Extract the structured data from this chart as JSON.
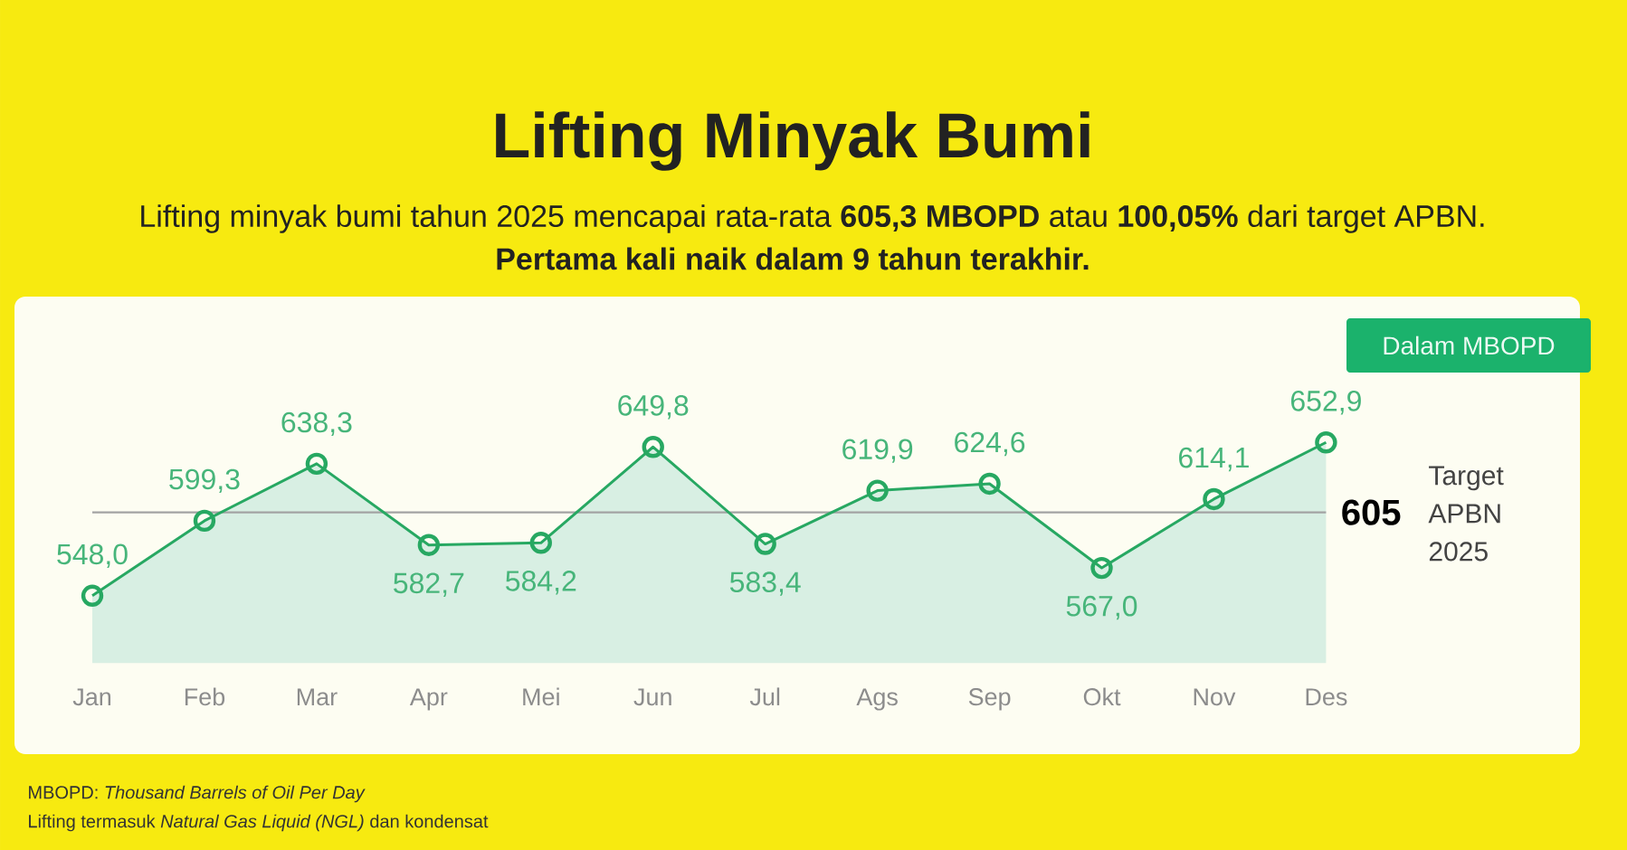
{
  "chart_data": {
    "type": "area",
    "title": "Lifting Minyak Bumi",
    "subtitle": "Lifting minyak bumi tahun 2025 mencapai rata-rata **605,3 MBOPD** atau **100,05%** dari target APBN.",
    "ylabel": "Dalam MBOPD",
    "categories": [
      "Jan",
      "Feb",
      "Mar",
      "Apr",
      "Mei",
      "Jun",
      "Jul",
      "Ags",
      "Sep",
      "Okt",
      "Nov",
      "Des"
    ],
    "values": [
      548.0,
      599.3,
      638.3,
      582.7,
      584.2,
      649.8,
      583.4,
      619.9,
      624.6,
      567.0,
      614.1,
      652.9
    ],
    "value_labels": [
      "548,0",
      "599,3",
      "638,3",
      "582,7",
      "584,2",
      "649,8",
      "583,4",
      "619,9",
      "624,6",
      "567,0",
      "614,1",
      "652,9"
    ],
    "color": "#27a862",
    "marker": "circle",
    "ref_lines": [
      {
        "axis": "y",
        "value": 605,
        "label": "605",
        "color": "#a3a3a3"
      }
    ],
    "annotations": [
      "Pertama kali naik dalam 9 tahun terakhir.",
      "Target APBN 2025",
      "MBOPD: *Thousand Barrels of Oil Per Day*",
      "Lifting termasuk *Natural Gas Liquid (NGL)* dan kondensat"
    ]
  }
}
